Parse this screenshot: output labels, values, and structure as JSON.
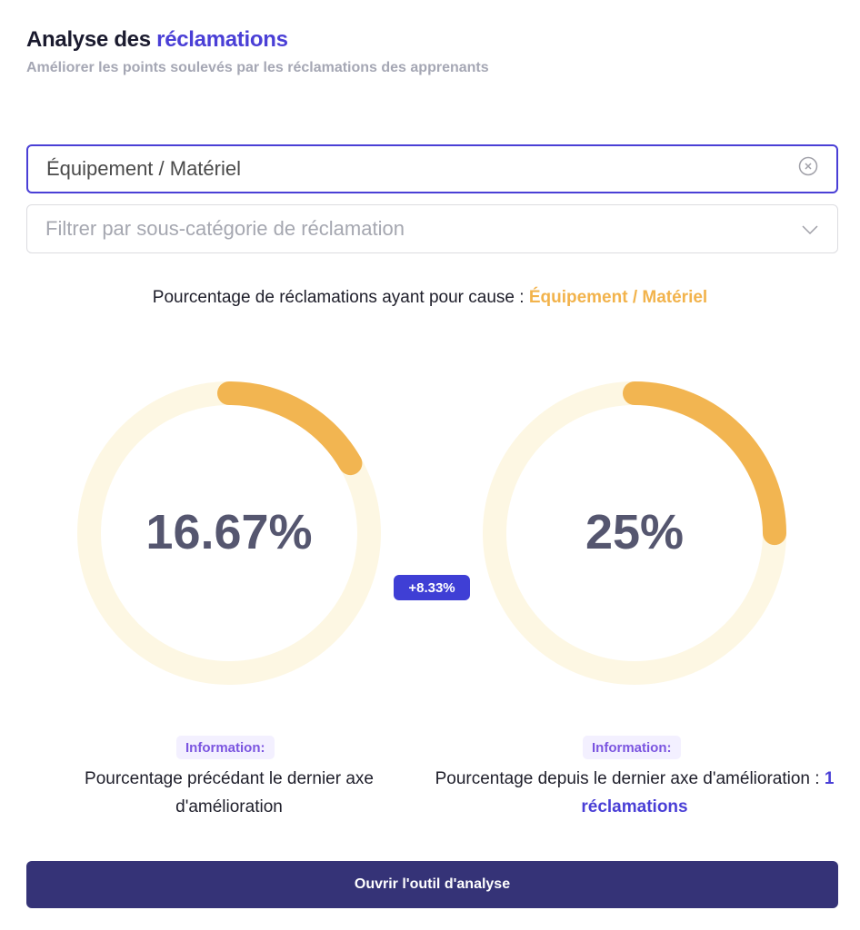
{
  "header": {
    "title_prefix": "Analyse des",
    "title_accent": "réclamations",
    "subtitle": "Améliorer les points soulevés par les réclamations des apprenants"
  },
  "filters": {
    "category_value": "Équipement / Matériel",
    "subcategory_placeholder": "Filtrer par sous-catégorie de réclamation"
  },
  "caption": {
    "text": "Pourcentage de réclamations ayant pour cause :",
    "category": "Équipement / Matériel"
  },
  "gauges": {
    "before": {
      "label": "16.67%",
      "value": 16.67,
      "info": "Information:",
      "description": "Pourcentage précédant le dernier axe d'amélioration"
    },
    "after": {
      "label": "25%",
      "value": 25,
      "info": "Information:",
      "description": "Pourcentage depuis le dernier axe d'amélioration :",
      "count": "1 réclamations"
    },
    "delta": "+8.33%"
  },
  "colors": {
    "accent": "#4a3fd6",
    "progress": "#f2b551",
    "track": "#fdf7e3",
    "button": "#353377"
  },
  "actions": {
    "open_tool": "Ouvrir l'outil d'analyse"
  }
}
